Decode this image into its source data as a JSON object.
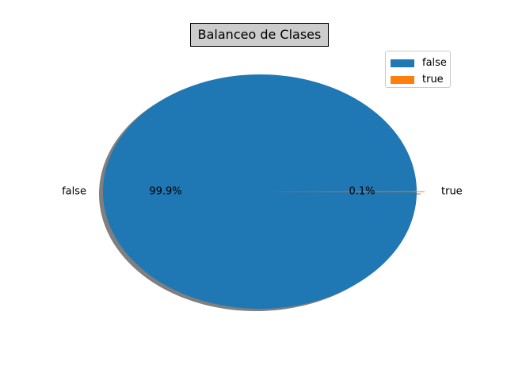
{
  "chart_data": {
    "type": "pie",
    "title": "Balanceo de Clases",
    "slices": [
      {
        "label": "false",
        "value": 99.9,
        "pct_label": "99.9%",
        "color": "#1f77b4"
      },
      {
        "label": "true",
        "value": 0.1,
        "pct_label": "0.1%",
        "color": "#ff7f0e"
      }
    ],
    "shadow": true,
    "legend": {
      "position": "top-right",
      "entries": [
        "false",
        "true"
      ]
    }
  }
}
